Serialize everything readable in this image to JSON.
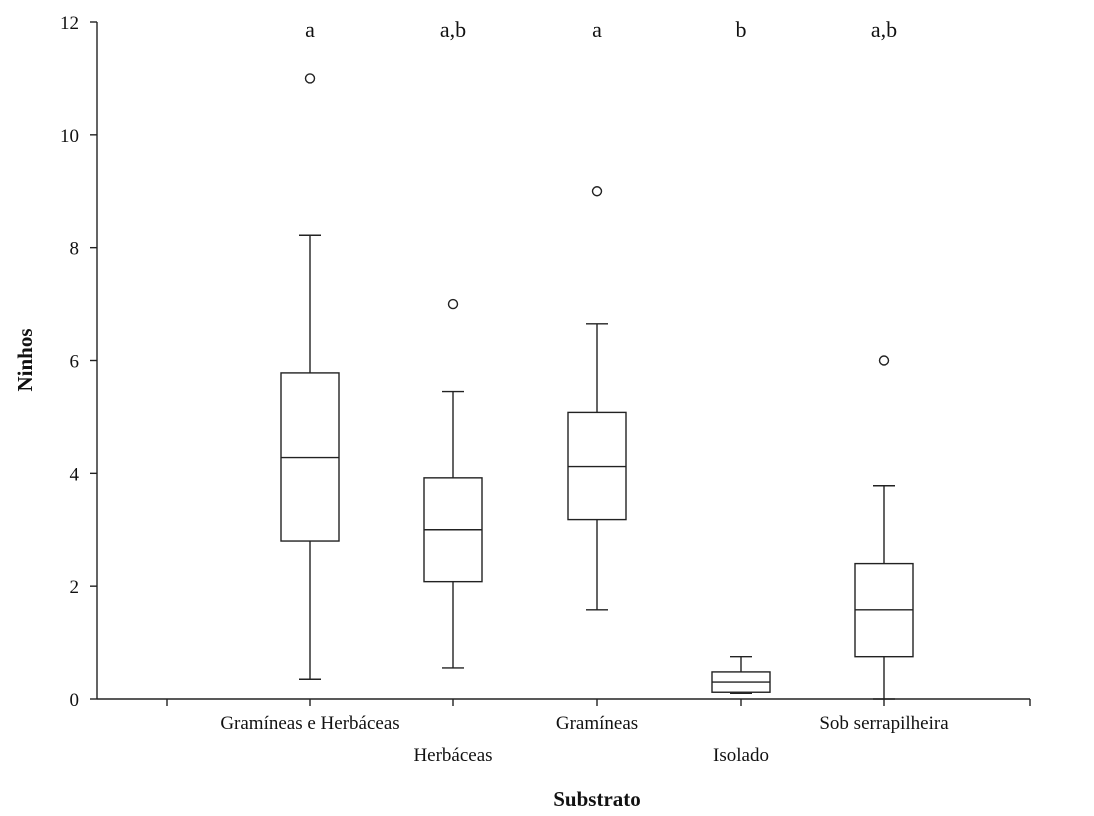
{
  "chart_data": {
    "type": "boxplot",
    "xlabel": "Substrato",
    "ylabel": "Ninhos",
    "ylim": [
      0,
      12
    ],
    "yticks": [
      0,
      2,
      4,
      6,
      8,
      10,
      12
    ],
    "grid": false,
    "categories": [
      "Gramíneas e Herbáceas",
      "Herbáceas",
      "Gramíneas",
      "Isolado",
      "Sob serrapilheira"
    ],
    "letters": [
      "a",
      "a,b",
      "a",
      "b",
      "a,b"
    ],
    "boxes": [
      {
        "whisker_low": 0.35,
        "q1": 2.8,
        "median": 4.28,
        "q3": 5.78,
        "whisker_high": 8.22,
        "outliers": [
          11
        ]
      },
      {
        "whisker_low": 0.55,
        "q1": 2.08,
        "median": 3.0,
        "q3": 3.92,
        "whisker_high": 5.45,
        "outliers": [
          7
        ]
      },
      {
        "whisker_low": 1.58,
        "q1": 3.18,
        "median": 4.12,
        "q3": 5.08,
        "whisker_high": 6.65,
        "outliers": [
          9
        ]
      },
      {
        "whisker_low": 0.1,
        "q1": 0.12,
        "median": 0.3,
        "q3": 0.48,
        "whisker_high": 0.75,
        "outliers": []
      },
      {
        "whisker_low": 0.0,
        "q1": 0.75,
        "median": 1.58,
        "q3": 2.4,
        "whisker_high": 3.78,
        "outliers": [
          6
        ]
      }
    ]
  }
}
